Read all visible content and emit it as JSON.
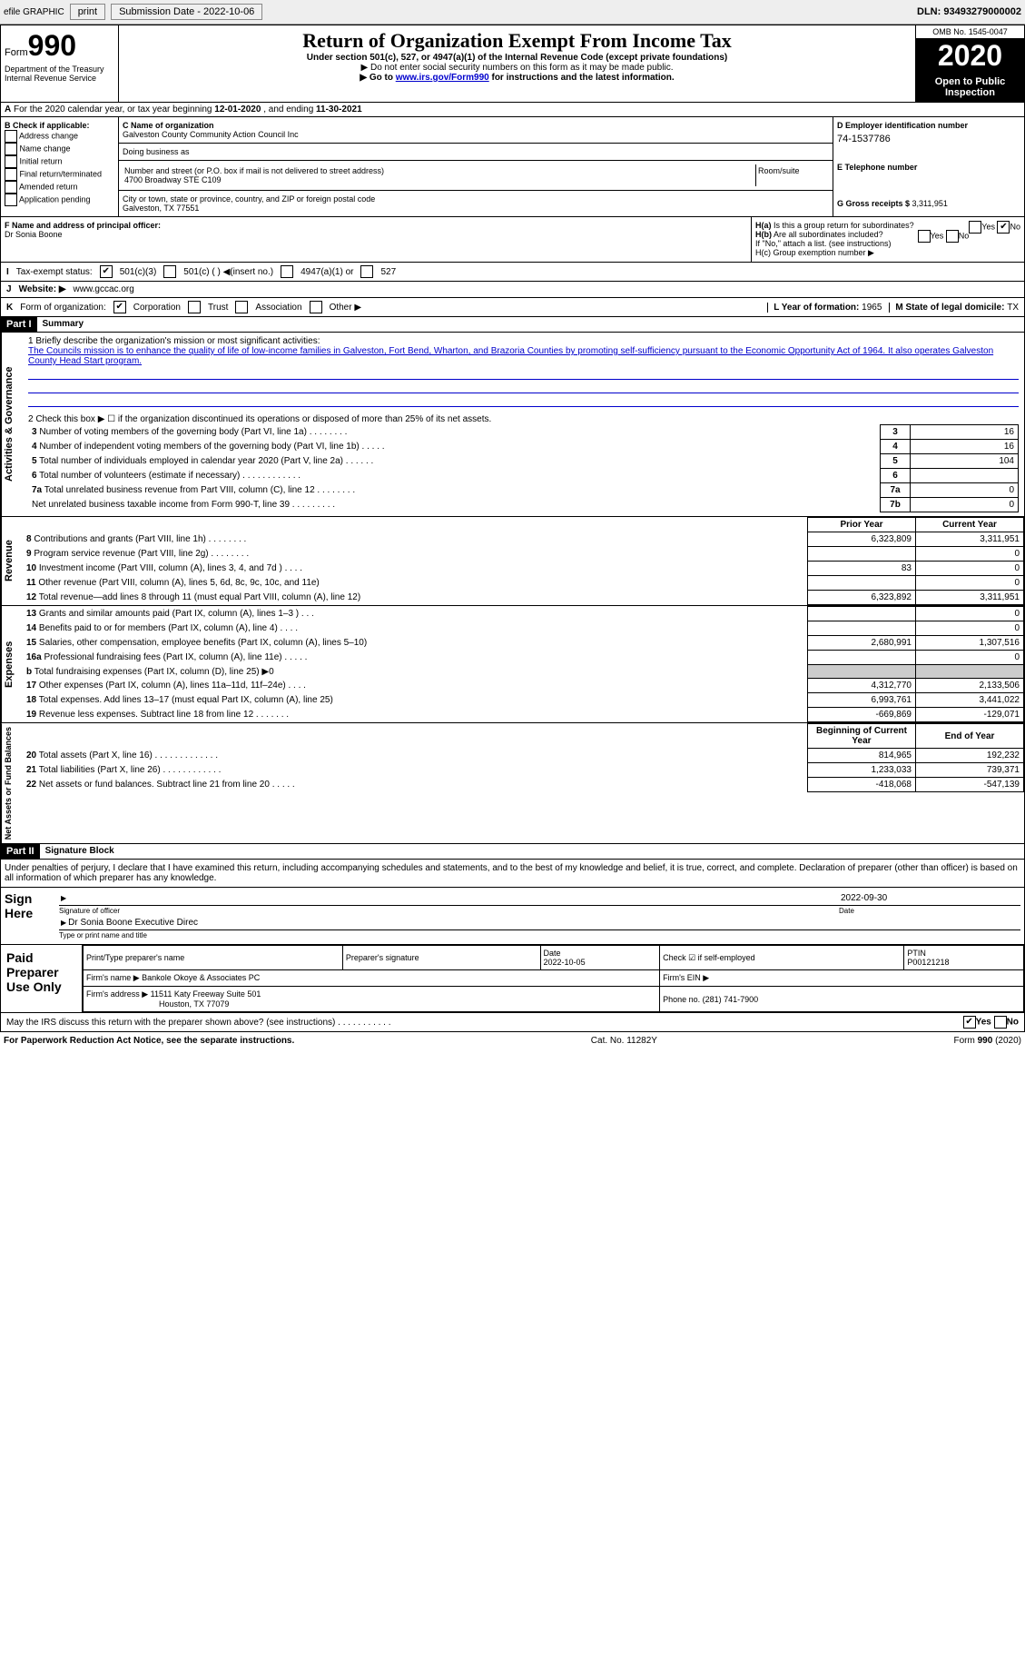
{
  "toolbar": {
    "efile": "efile GRAPHIC",
    "print": "print",
    "subdate_lbl": "Submission Date - ",
    "subdate": "2022-10-06",
    "dln_lbl": "DLN: ",
    "dln": "93493279000002"
  },
  "hdr": {
    "form": "Form",
    "num": "990",
    "title": "Return of Organization Exempt From Income Tax",
    "sub": "Under section 501(c), 527, or 4947(a)(1) of the Internal Revenue Code (except private foundations)",
    "note1": "▶ Do not enter social security numbers on this form as it may be made public.",
    "note2_pre": "▶ Go to ",
    "note2_link": "www.irs.gov/Form990",
    "note2_post": " for instructions and the latest information.",
    "dept": "Department of the Treasury\nInternal Revenue Service",
    "omb": "OMB No. 1545-0047",
    "year": "2020",
    "open": "Open to Public Inspection"
  },
  "rowA": {
    "text": "For the 2020 calendar year, or tax year beginning ",
    "d1": "12-01-2020",
    "mid": " , and ending ",
    "d2": "11-30-2021"
  },
  "B": {
    "hdr": "B Check if applicable:",
    "items": [
      "Address change",
      "Name change",
      "Initial return",
      "Final return/terminated",
      "Amended return",
      "Application pending"
    ]
  },
  "C": {
    "name_lbl": "C Name of organization",
    "name": "Galveston County Community Action Council Inc",
    "dba_lbl": "Doing business as",
    "addr_lbl": "Number and street (or P.O. box if mail is not delivered to street address)",
    "room_lbl": "Room/suite",
    "addr": "4700 Broadway STE C109",
    "city_lbl": "City or town, state or province, country, and ZIP or foreign postal code",
    "city": "Galveston, TX  77551"
  },
  "D": {
    "lbl": "D Employer identification number",
    "ein": "74-1537786",
    "tel_lbl": "E Telephone number",
    "gross_lbl": "G Gross receipts $ ",
    "gross": "3,311,951"
  },
  "F": {
    "lbl": "F  Name and address of principal officer:",
    "name": "Dr Sonia Boone"
  },
  "H": {
    "a": "H(a)  Is this a group return for subordinates?",
    "b": "H(b)  Are all subordinates included?",
    "bnote": "If \"No,\" attach a list. (see instructions)",
    "c": "H(c)  Group exemption number ▶",
    "yes": "Yes",
    "no": "No"
  },
  "I": {
    "lbl": "Tax-exempt status:",
    "o1": "501(c)(3)",
    "o2": "501(c) (  ) ◀(insert no.)",
    "o3": "4947(a)(1) or",
    "o4": "527"
  },
  "J": {
    "lbl": "Website: ▶",
    "val": "www.gccac.org"
  },
  "K": {
    "lbl": "Form of organization:",
    "o1": "Corporation",
    "o2": "Trust",
    "o3": "Association",
    "o4": "Other ▶"
  },
  "LM": {
    "l": "L Year of formation: ",
    "lval": "1965",
    "m": "M State of legal domicile: ",
    "mval": "TX"
  },
  "part1": {
    "hdr": "Part I",
    "title": "Summary"
  },
  "s1": {
    "lbl": "1  Briefly describe the organization's mission or most significant activities:",
    "mission": "The Councils mission is to enhance the quality of life of low-income families in Galveston, Fort Bend, Wharton, and Brazoria Counties by promoting self-sufficiency pursuant to the Economic Opportunity Act of 1964. It also operates Galveston County Head Start program."
  },
  "s2": "2   Check this box ▶ ☐ if the organization discontinued its operations or disposed of more than 25% of its net assets.",
  "gov": [
    {
      "n": "3",
      "t": "Number of voting members of the governing body (Part VI, line 1a)  .    .    .    .    .    .    .    .",
      "c": "3",
      "v": "16"
    },
    {
      "n": "4",
      "t": "Number of independent voting members of the governing body (Part VI, line 1b)  .    .    .    .    .",
      "c": "4",
      "v": "16"
    },
    {
      "n": "5",
      "t": "Total number of individuals employed in calendar year 2020 (Part V, line 2a)  .    .    .    .    .    .",
      "c": "5",
      "v": "104"
    },
    {
      "n": "6",
      "t": "Total number of volunteers (estimate if necessary)  .    .    .    .    .    .    .    .    .    .    .    .",
      "c": "6",
      "v": ""
    },
    {
      "n": "7a",
      "t": "Total unrelated business revenue from Part VIII, column (C), line 12  .    .    .    .    .    .    .    .",
      "c": "7a",
      "v": "0"
    },
    {
      "n": "",
      "t": "Net unrelated business taxable income from Form 990-T, line 39  .    .    .    .    .    .    .    .    .",
      "c": "7b",
      "v": "0"
    }
  ],
  "rev_hdr": {
    "py": "Prior Year",
    "cy": "Current Year"
  },
  "rev": [
    {
      "n": "8",
      "t": "Contributions and grants (Part VIII, line 1h)  .    .    .    .    .    .    .    .",
      "p": "6,323,809",
      "c": "3,311,951"
    },
    {
      "n": "9",
      "t": "Program service revenue (Part VIII, line 2g)  .    .    .    .    .    .    .    .",
      "p": "",
      "c": "0"
    },
    {
      "n": "10",
      "t": "Investment income (Part VIII, column (A), lines 3, 4, and 7d )  .    .    .    .",
      "p": "83",
      "c": "0"
    },
    {
      "n": "11",
      "t": "Other revenue (Part VIII, column (A), lines 5, 6d, 8c, 9c, 10c, and 11e)",
      "p": "",
      "c": "0"
    },
    {
      "n": "12",
      "t": "Total revenue—add lines 8 through 11 (must equal Part VIII, column (A), line 12)",
      "p": "6,323,892",
      "c": "3,311,951"
    }
  ],
  "exp": [
    {
      "n": "13",
      "t": "Grants and similar amounts paid (Part IX, column (A), lines 1–3 )  .    .    .",
      "p": "",
      "c": "0"
    },
    {
      "n": "14",
      "t": "Benefits paid to or for members (Part IX, column (A), line 4)  .    .    .    .",
      "p": "",
      "c": "0"
    },
    {
      "n": "15",
      "t": "Salaries, other compensation, employee benefits (Part IX, column (A), lines 5–10)",
      "p": "2,680,991",
      "c": "1,307,516"
    },
    {
      "n": "16a",
      "t": "Professional fundraising fees (Part IX, column (A), line 11e)  .    .    .    .    .",
      "p": "",
      "c": "0"
    },
    {
      "n": "b",
      "t": "Total fundraising expenses (Part IX, column (D), line 25) ▶0",
      "p": "shade",
      "c": "shade"
    },
    {
      "n": "17",
      "t": "Other expenses (Part IX, column (A), lines 11a–11d, 11f–24e)  .    .    .    .",
      "p": "4,312,770",
      "c": "2,133,506"
    },
    {
      "n": "18",
      "t": "Total expenses. Add lines 13–17 (must equal Part IX, column (A), line 25)",
      "p": "6,993,761",
      "c": "3,441,022"
    },
    {
      "n": "19",
      "t": "Revenue less expenses. Subtract line 18 from line 12  .    .    .    .    .    .    .",
      "p": "-669,869",
      "c": "-129,071"
    }
  ],
  "na_hdr": {
    "b": "Beginning of Current Year",
    "e": "End of Year"
  },
  "na": [
    {
      "n": "20",
      "t": "Total assets (Part X, line 16)  .    .    .    .    .    .    .    .    .    .    .    .    .",
      "p": "814,965",
      "c": "192,232"
    },
    {
      "n": "21",
      "t": "Total liabilities (Part X, line 26)  .    .    .    .    .    .    .    .    .    .    .    .",
      "p": "1,233,033",
      "c": "739,371"
    },
    {
      "n": "22",
      "t": "Net assets or fund balances. Subtract line 21 from line 20  .    .    .    .    .",
      "p": "-418,068",
      "c": "-547,139"
    }
  ],
  "tabs": {
    "gov": "Activities & Governance",
    "rev": "Revenue",
    "exp": "Expenses",
    "na": "Net Assets or Fund Balances"
  },
  "part2": {
    "hdr": "Part II",
    "title": "Signature Block"
  },
  "pen": "Under penalties of perjury, I declare that I have examined this return, including accompanying schedules and statements, and to the best of my knowledge and belief, it is true, correct, and complete. Declaration of preparer (other than officer) is based on all information of which preparer has any knowledge.",
  "sign": {
    "here": "Sign Here",
    "sigoff": "Signature of officer",
    "date": "Date",
    "dateval": "2022-09-30",
    "name": "Dr Sonia Boone  Executive Direc",
    "type": "Type or print name and title"
  },
  "paid": {
    "hdr": "Paid Preparer Use Only",
    "pt": "Print/Type preparer's name",
    "ps": "Preparer's signature",
    "dt": "Date",
    "dtv": "2022-10-05",
    "chk": "Check ☑ if self-employed",
    "ptin": "PTIN",
    "ptinv": "P00121218",
    "fn": "Firm's name    ▶",
    "fnv": "Bankole Okoye & Associates PC",
    "fein": "Firm's EIN ▶",
    "fa": "Firm's address ▶",
    "fav1": "11511 Katy Freeway Suite 501",
    "fav2": "Houston, TX  77079",
    "ph": "Phone no. ",
    "phv": "(281) 741-7900"
  },
  "disc": {
    "q": "May the IRS discuss this return with the preparer shown above? (see instructions)   .    .    .    .    .    .    .    .    .    .    .",
    "yes": "Yes",
    "no": "No"
  },
  "ftr": {
    "l": "For Paperwork Reduction Act Notice, see the separate instructions.",
    "m": "Cat. No. 11282Y",
    "r": "Form 990 (2020)"
  }
}
